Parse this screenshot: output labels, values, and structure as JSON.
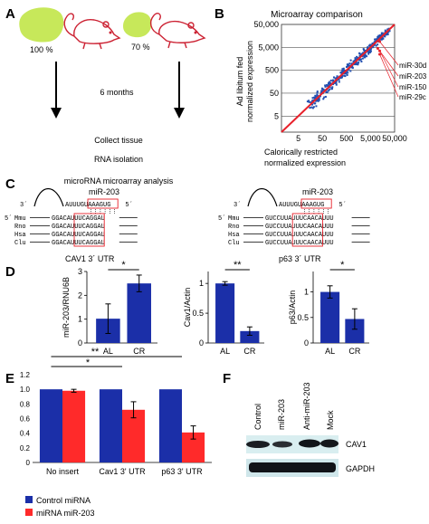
{
  "panels": {
    "A": {
      "letter": "A",
      "pct_left": "100 %",
      "pct_right": "70 %",
      "duration": "6 months",
      "steps": [
        "Collect tissue",
        "RNA isolation",
        "microRNA microarray analysis"
      ]
    },
    "B": {
      "letter": "B",
      "title": "Microarray comparison",
      "ylabel_1": "Ad libitum fed",
      "ylabel_2": "normalized expression",
      "xlabel_1": "Calorically restricted",
      "xlabel_2": "normalized expression",
      "callouts": [
        "miR-30d",
        "miR-203",
        "miR-150",
        "miR-29c"
      ]
    },
    "C": {
      "letter": "C",
      "left": {
        "mirna": "miR-203",
        "mirna_seq": "AUUUGUAAAGUG",
        "prime3": "3´",
        "prime5": "5´",
        "label": "CAV1 3´ UTR",
        "species": [
          "Mmu",
          "Rno",
          "Hsa",
          "Clu"
        ],
        "seqs": [
          "GGACAUUUCAGGAU",
          "GGACAUUUCAGGAU",
          "GGACAUUUCAGGAU",
          "GGACAUUUCAGGAU"
        ]
      },
      "right": {
        "mirna": "miR-203",
        "mirna_seq": "AUUUGUAAAGUG",
        "prime3": "3´",
        "prime5": "5´",
        "label": "p63 3´ UTR",
        "species": [
          "Mmu",
          "Rno",
          "Hsa",
          "Clu"
        ],
        "seqs": [
          "GUCCUUAUUUCAACAUUU",
          "GUCCUUAUUUCAACAUUU",
          "GUCCUUAUUUCAACAUUU",
          "GUCCUUAUUUCAACAUUU"
        ]
      },
      "prime5_left": "5´"
    },
    "D": {
      "letter": "D"
    },
    "E": {
      "letter": "E",
      "legend": [
        "Control miRNA",
        "miRNA miR-203"
      ]
    },
    "F": {
      "letter": "F",
      "lanes": [
        "Control",
        "miR-203",
        "Anti-miR-203",
        "Mock"
      ],
      "bands": [
        "CAV1",
        "GAPDH"
      ]
    }
  },
  "colors": {
    "bar_blue": "#1b2fa8",
    "bar_red": "#ff2a2a",
    "diag_red": "#e8202a",
    "dot_blue": "#2250b0",
    "mouse_red": "#cc2233",
    "tissue_green": "#c7e85a"
  },
  "chart_data": [
    {
      "type": "scatter",
      "panel": "B",
      "title": "Microarray comparison",
      "xlabel": "Calorically restricted normalized expression",
      "ylabel": "Ad libitum fed normalized expression",
      "xscale": "log",
      "yscale": "log",
      "xlim": [
        1,
        50000
      ],
      "ylim": [
        1,
        50000
      ],
      "xticks": [
        "5",
        "50",
        "500",
        "5,000",
        "50,000"
      ],
      "yticks": [
        "5",
        "50",
        "500",
        "5,000",
        "50,000"
      ],
      "grid": true,
      "diagonal": true,
      "highlight_points": [
        {
          "name": "miR-30d",
          "x": 12000,
          "y": 9000
        },
        {
          "name": "miR-203",
          "x": 10000,
          "y": 4500
        },
        {
          "name": "miR-150",
          "x": 12000,
          "y": 3500
        },
        {
          "name": "miR-29c",
          "x": 12000,
          "y": 2500
        }
      ]
    },
    {
      "type": "bar",
      "panel": "D1",
      "ylabel": "miR-203/RNU6B",
      "categories": [
        "AL",
        "CR"
      ],
      "values": [
        1.02,
        2.5
      ],
      "errors": [
        0.62,
        0.35
      ],
      "ylim": [
        0,
        3
      ],
      "yticks": [
        "0",
        "1",
        "2",
        "3"
      ],
      "significance": "*"
    },
    {
      "type": "bar",
      "panel": "D2",
      "ylabel": "Cav1/Actin",
      "categories": [
        "AL",
        "CR"
      ],
      "values": [
        1.0,
        0.2
      ],
      "errors": [
        0.03,
        0.07
      ],
      "ylim": [
        0,
        1.2
      ],
      "yticks": [
        "0",
        "0.5",
        "1"
      ],
      "significance": "**"
    },
    {
      "type": "bar",
      "panel": "D3",
      "ylabel": "p63/Actin",
      "categories": [
        "AL",
        "CR"
      ],
      "values": [
        1.0,
        0.47
      ],
      "errors": [
        0.12,
        0.2
      ],
      "ylim": [
        0,
        1.4
      ],
      "yticks": [
        "0",
        "0.5",
        "1"
      ],
      "significance": "*"
    },
    {
      "type": "bar",
      "panel": "E",
      "categories": [
        "No insert",
        "Cav1 3' UTR",
        "p63 3' UTR"
      ],
      "series": [
        {
          "name": "Control miRNA",
          "values": [
            1.0,
            1.0,
            1.0
          ],
          "errors": [
            0,
            0,
            0
          ]
        },
        {
          "name": "miRNA miR-203",
          "values": [
            0.98,
            0.72,
            0.41
          ],
          "errors": [
            0.02,
            0.11,
            0.09
          ]
        }
      ],
      "ylim": [
        0,
        1.2
      ],
      "yticks": [
        "0",
        "0.2",
        "0.4",
        "0.6",
        "0.8",
        "1.0",
        "1.2"
      ],
      "significance": [
        "**",
        "*"
      ]
    }
  ]
}
